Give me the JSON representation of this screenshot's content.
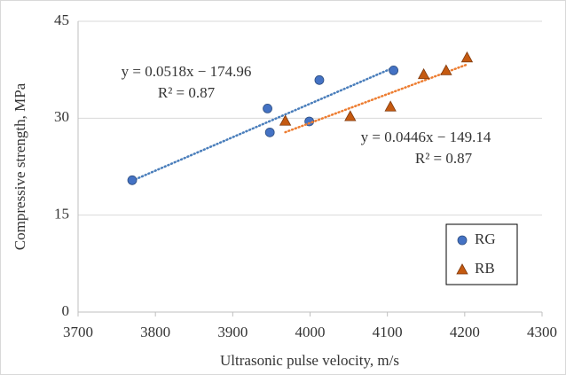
{
  "chart_data": {
    "type": "scatter",
    "x_label": "Ultrasonic pulse velocity, m/s",
    "y_label": "Compressive strength, MPa",
    "xlim": [
      3700,
      4300
    ],
    "xticks": [
      3700,
      3800,
      3900,
      4000,
      4100,
      4200,
      4300
    ],
    "ylim": [
      0,
      45
    ],
    "yticks": [
      0,
      15,
      30,
      45
    ],
    "grid": true,
    "legend": "lower right",
    "series": [
      {
        "name": "RG",
        "color": "#4472c4",
        "marker": "circle",
        "x": [
          3770,
          3945,
          3948,
          3999,
          4012,
          4108
        ],
        "values": [
          20.4,
          31.5,
          27.8,
          29.5,
          35.9,
          37.4
        ],
        "trendline": {
          "slope": 0.0518,
          "intercept": -174.96,
          "color": "#4a7ebb",
          "label": "y = 0.0518x − 174.96",
          "r2_label": "R² = 0.87"
        }
      },
      {
        "name": "RB",
        "color": "#c55a11",
        "marker": "triangle",
        "x": [
          3968,
          4052,
          4104,
          4147,
          4176,
          4203
        ],
        "values": [
          29.6,
          30.3,
          31.8,
          36.8,
          37.4,
          39.4
        ],
        "trendline": {
          "slope": 0.0446,
          "intercept": -149.14,
          "color": "#ed7d31",
          "label": "y = 0.0446x − 149.14",
          "r2_label": "R² = 0.87"
        }
      }
    ]
  }
}
